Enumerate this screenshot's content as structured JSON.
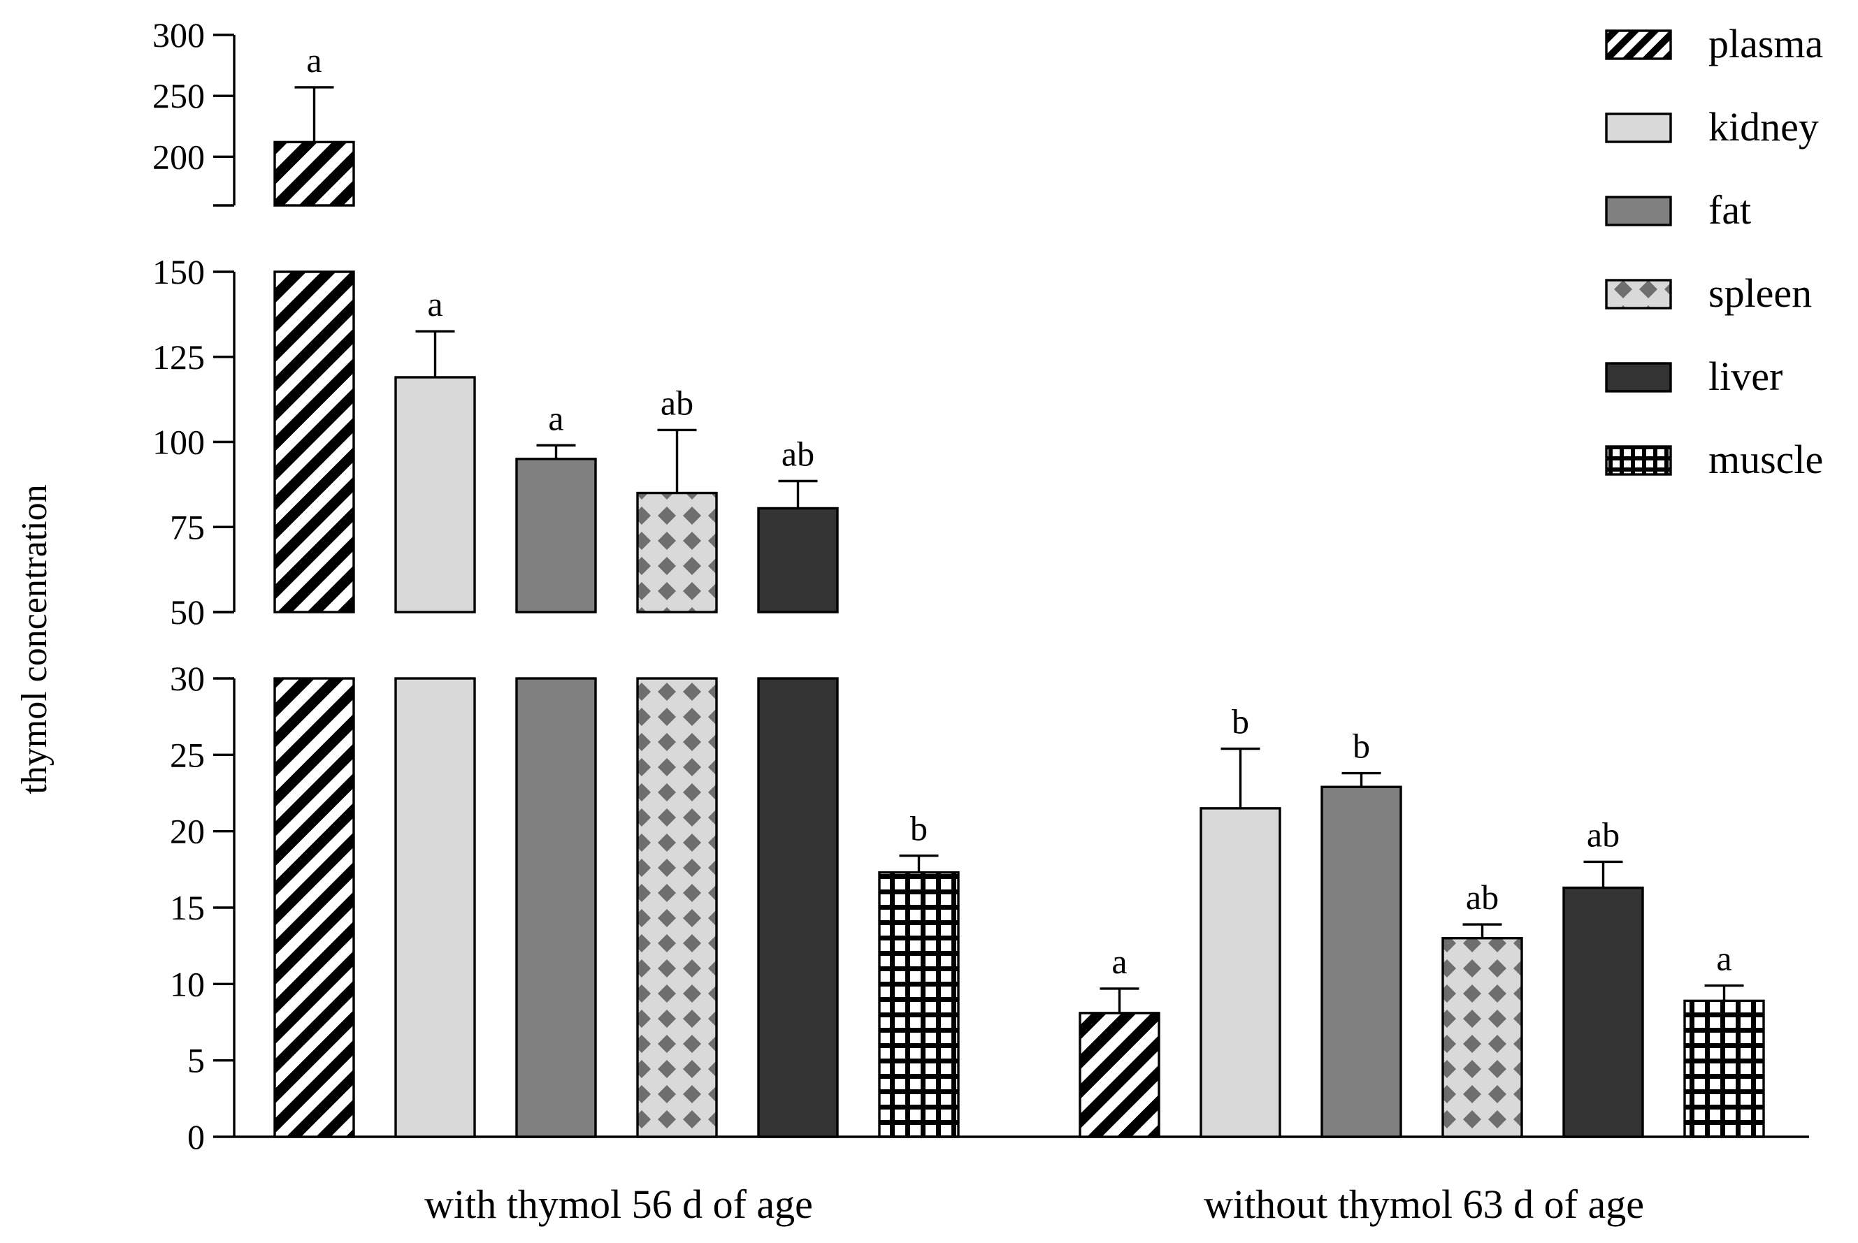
{
  "chart_data": {
    "type": "bar",
    "ylabel": "thymol concentration",
    "categories": [
      "with thymol 56 d of age",
      "without thymol 63 d of age"
    ],
    "y_axis": {
      "broken": true,
      "segments": [
        {
          "range": [
            0,
            30
          ],
          "ticks": [
            0,
            5,
            10,
            15,
            20,
            25,
            30
          ]
        },
        {
          "range": [
            50,
            150
          ],
          "ticks": [
            50,
            75,
            100,
            125,
            150
          ]
        },
        {
          "range": [
            160,
            300
          ],
          "ticks": [
            200,
            250,
            300
          ]
        }
      ]
    },
    "legend_position": "top-right",
    "series": [
      {
        "name": "plasma",
        "fill": "stripes",
        "colors": [
          "#000000",
          "#ffffff"
        ],
        "values": [
          212,
          8.1
        ],
        "errors": [
          45,
          1.6
        ],
        "labels": [
          "a",
          "a"
        ]
      },
      {
        "name": "kidney",
        "fill": "solid",
        "colors": [
          "#d9d9d9"
        ],
        "values": [
          119,
          21.5
        ],
        "errors": [
          13.5,
          3.9
        ],
        "labels": [
          "a",
          "b"
        ]
      },
      {
        "name": "fat",
        "fill": "solid",
        "colors": [
          "#808080"
        ],
        "values": [
          95,
          22.9
        ],
        "errors": [
          4,
          0.9
        ],
        "labels": [
          "a",
          "b"
        ]
      },
      {
        "name": "spleen",
        "fill": "diamonds",
        "colors": [
          "#d9d9d9",
          "#6e6e6e"
        ],
        "values": [
          85,
          13
        ],
        "errors": [
          18.5,
          0.9
        ],
        "labels": [
          "ab",
          "ab"
        ]
      },
      {
        "name": "liver",
        "fill": "solid",
        "colors": [
          "#333333"
        ],
        "values": [
          80.5,
          16.3
        ],
        "errors": [
          8,
          1.7
        ],
        "labels": [
          "ab",
          "ab"
        ]
      },
      {
        "name": "muscle",
        "fill": "grid",
        "colors": [
          "#000000",
          "#ffffff"
        ],
        "values": [
          17.3,
          8.9
        ],
        "errors": [
          1.1,
          1
        ],
        "labels": [
          "b",
          "a"
        ]
      }
    ]
  }
}
